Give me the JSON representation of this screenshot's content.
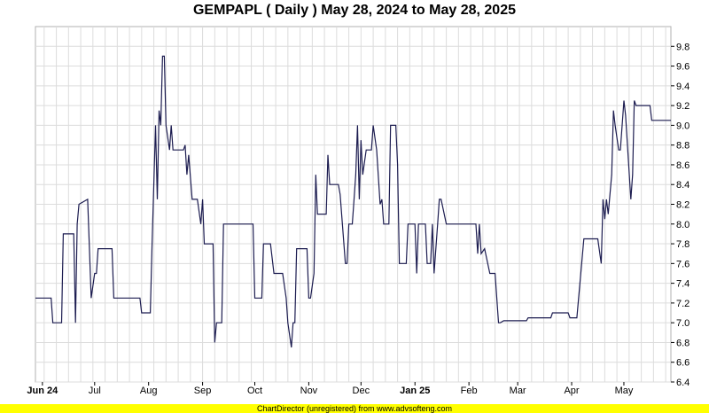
{
  "chart_data": {
    "type": "line",
    "title": "GEMPAPL ( Daily ) May 28, 2024 to May 28, 2025",
    "xlabel": "",
    "ylabel": "",
    "x_range": [
      "2024-05-28",
      "2025-05-28"
    ],
    "ylim": [
      6.4,
      10.0
    ],
    "y_ticks": [
      "6.4",
      "6.6",
      "6.8",
      "7.0",
      "7.2",
      "7.4",
      "7.6",
      "7.8",
      "8.0",
      "8.2",
      "8.4",
      "8.6",
      "8.8",
      "9.0",
      "9.2",
      "9.4",
      "9.6",
      "9.8"
    ],
    "x_ticks": [
      {
        "date": "2024-06-01",
        "label": "Jun 24",
        "bold": true
      },
      {
        "date": "2024-07-01",
        "label": "Jul",
        "bold": false
      },
      {
        "date": "2024-08-01",
        "label": "Aug",
        "bold": false
      },
      {
        "date": "2024-09-01",
        "label": "Sep",
        "bold": false
      },
      {
        "date": "2024-10-01",
        "label": "Oct",
        "bold": false
      },
      {
        "date": "2024-11-01",
        "label": "Nov",
        "bold": false
      },
      {
        "date": "2024-12-01",
        "label": "Dec",
        "bold": false
      },
      {
        "date": "2025-01-01",
        "label": "Jan 25",
        "bold": true
      },
      {
        "date": "2025-02-01",
        "label": "Feb",
        "bold": false
      },
      {
        "date": "2025-03-01",
        "label": "Mar",
        "bold": false
      },
      {
        "date": "2025-04-01",
        "label": "Apr",
        "bold": false
      },
      {
        "date": "2025-05-01",
        "label": "May",
        "bold": false
      }
    ],
    "grid": true,
    "line_color": "#1c1c50",
    "series": [
      {
        "name": "",
        "points": [
          [
            "2024-05-28",
            7.25
          ],
          [
            "2024-06-06",
            7.25
          ],
          [
            "2024-06-07",
            7.0
          ],
          [
            "2024-06-12",
            7.0
          ],
          [
            "2024-06-13",
            7.9
          ],
          [
            "2024-06-19",
            7.9
          ],
          [
            "2024-06-20",
            7.0
          ],
          [
            "2024-06-21",
            8.0
          ],
          [
            "2024-06-22",
            8.2
          ],
          [
            "2024-06-27",
            8.25
          ],
          [
            "2024-06-29",
            7.25
          ],
          [
            "2024-07-01",
            7.5
          ],
          [
            "2024-07-02",
            7.5
          ],
          [
            "2024-07-03",
            7.75
          ],
          [
            "2024-07-11",
            7.75
          ],
          [
            "2024-07-12",
            7.25
          ],
          [
            "2024-07-27",
            7.25
          ],
          [
            "2024-07-28",
            7.1
          ],
          [
            "2024-08-02",
            7.1
          ],
          [
            "2024-08-03",
            7.8
          ],
          [
            "2024-08-05",
            9.0
          ],
          [
            "2024-08-06",
            8.25
          ],
          [
            "2024-08-07",
            9.15
          ],
          [
            "2024-08-08",
            9.0
          ],
          [
            "2024-08-09",
            9.7
          ],
          [
            "2024-08-10",
            9.7
          ],
          [
            "2024-08-11",
            9.0
          ],
          [
            "2024-08-13",
            8.75
          ],
          [
            "2024-08-14",
            9.0
          ],
          [
            "2024-08-15",
            8.75
          ],
          [
            "2024-08-21",
            8.75
          ],
          [
            "2024-08-22",
            8.8
          ],
          [
            "2024-08-23",
            8.5
          ],
          [
            "2024-08-24",
            8.7
          ],
          [
            "2024-08-26",
            8.25
          ],
          [
            "2024-08-29",
            8.25
          ],
          [
            "2024-08-31",
            8.0
          ],
          [
            "2024-09-01",
            8.25
          ],
          [
            "2024-09-02",
            7.8
          ],
          [
            "2024-09-07",
            7.8
          ],
          [
            "2024-09-08",
            6.8
          ],
          [
            "2024-09-09",
            7.0
          ],
          [
            "2024-09-12",
            7.0
          ],
          [
            "2024-09-13",
            8.0
          ],
          [
            "2024-09-30",
            8.0
          ],
          [
            "2024-10-01",
            7.25
          ],
          [
            "2024-10-05",
            7.25
          ],
          [
            "2024-10-06",
            7.8
          ],
          [
            "2024-10-10",
            7.8
          ],
          [
            "2024-10-12",
            7.5
          ],
          [
            "2024-10-17",
            7.5
          ],
          [
            "2024-10-19",
            7.25
          ],
          [
            "2024-10-20",
            7.0
          ],
          [
            "2024-10-22",
            6.75
          ],
          [
            "2024-10-23",
            7.0
          ],
          [
            "2024-10-24",
            7.0
          ],
          [
            "2024-10-25",
            7.75
          ],
          [
            "2024-10-31",
            7.75
          ],
          [
            "2024-11-01",
            7.25
          ],
          [
            "2024-11-02",
            7.25
          ],
          [
            "2024-11-04",
            7.5
          ],
          [
            "2024-11-05",
            8.5
          ],
          [
            "2024-11-06",
            8.1
          ],
          [
            "2024-11-11",
            8.1
          ],
          [
            "2024-11-12",
            8.7
          ],
          [
            "2024-11-13",
            8.4
          ],
          [
            "2024-11-18",
            8.4
          ],
          [
            "2024-11-19",
            8.3
          ],
          [
            "2024-11-22",
            7.6
          ],
          [
            "2024-11-23",
            7.6
          ],
          [
            "2024-11-24",
            8.0
          ],
          [
            "2024-11-26",
            8.0
          ],
          [
            "2024-11-27",
            8.25
          ],
          [
            "2024-11-28",
            8.5
          ],
          [
            "2024-11-29",
            9.0
          ],
          [
            "2024-11-30",
            8.25
          ],
          [
            "2024-12-01",
            8.85
          ],
          [
            "2024-12-02",
            8.5
          ],
          [
            "2024-12-04",
            8.75
          ],
          [
            "2024-12-07",
            8.75
          ],
          [
            "2024-12-08",
            9.0
          ],
          [
            "2024-12-10",
            8.75
          ],
          [
            "2024-12-12",
            8.2
          ],
          [
            "2024-12-13",
            8.25
          ],
          [
            "2024-12-14",
            8.0
          ],
          [
            "2024-12-17",
            8.0
          ],
          [
            "2024-12-18",
            9.0
          ],
          [
            "2024-12-21",
            9.0
          ],
          [
            "2024-12-22",
            8.6
          ],
          [
            "2024-12-23",
            7.6
          ],
          [
            "2024-12-27",
            7.6
          ],
          [
            "2024-12-28",
            8.0
          ],
          [
            "2025-01-01",
            8.0
          ],
          [
            "2025-01-02",
            7.5
          ],
          [
            "2025-01-03",
            8.0
          ],
          [
            "2025-01-07",
            8.0
          ],
          [
            "2025-01-08",
            7.6
          ],
          [
            "2025-01-10",
            7.6
          ],
          [
            "2025-01-11",
            8.0
          ],
          [
            "2025-01-12",
            7.5
          ],
          [
            "2025-01-14",
            8.0
          ],
          [
            "2025-01-15",
            8.25
          ],
          [
            "2025-01-16",
            8.25
          ],
          [
            "2025-01-19",
            8.0
          ],
          [
            "2025-02-05",
            8.0
          ],
          [
            "2025-02-06",
            7.7
          ],
          [
            "2025-02-07",
            8.0
          ],
          [
            "2025-02-08",
            7.7
          ],
          [
            "2025-02-10",
            7.75
          ],
          [
            "2025-02-13",
            7.5
          ],
          [
            "2025-02-16",
            7.5
          ],
          [
            "2025-02-18",
            7.0
          ],
          [
            "2025-02-19",
            7.0
          ],
          [
            "2025-02-21",
            7.02
          ],
          [
            "2025-03-06",
            7.02
          ],
          [
            "2025-03-07",
            7.05
          ],
          [
            "2025-03-20",
            7.05
          ],
          [
            "2025-03-21",
            7.1
          ],
          [
            "2025-03-30",
            7.1
          ],
          [
            "2025-03-31",
            7.05
          ],
          [
            "2025-04-04",
            7.05
          ],
          [
            "2025-04-08",
            7.85
          ],
          [
            "2025-04-16",
            7.85
          ],
          [
            "2025-04-18",
            7.6
          ],
          [
            "2025-04-19",
            8.25
          ],
          [
            "2025-04-20",
            8.05
          ],
          [
            "2025-04-21",
            8.25
          ],
          [
            "2025-04-22",
            8.1
          ],
          [
            "2025-04-24",
            8.5
          ],
          [
            "2025-04-25",
            9.15
          ],
          [
            "2025-04-26",
            9.0
          ],
          [
            "2025-04-28",
            8.75
          ],
          [
            "2025-04-29",
            8.75
          ],
          [
            "2025-05-01",
            9.25
          ],
          [
            "2025-05-02",
            9.1
          ],
          [
            "2025-05-05",
            8.25
          ],
          [
            "2025-05-06",
            8.5
          ],
          [
            "2025-05-07",
            9.25
          ],
          [
            "2025-05-08",
            9.2
          ],
          [
            "2025-05-16",
            9.2
          ],
          [
            "2025-05-17",
            9.05
          ],
          [
            "2025-05-28",
            9.05
          ]
        ]
      }
    ]
  },
  "footer": {
    "watermark": "ChartDirector (unregistered) from www.advsofteng.com"
  }
}
